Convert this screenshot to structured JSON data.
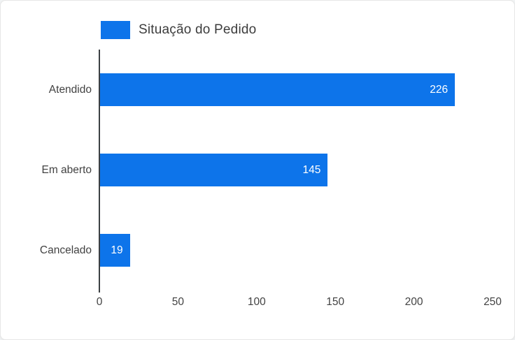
{
  "legend": {
    "label": "Situação do Pedido"
  },
  "chart_data": {
    "type": "bar",
    "orientation": "horizontal",
    "title": "",
    "series_name": "Situação do Pedido",
    "categories": [
      "Atendido",
      "Em aberto",
      "Cancelado"
    ],
    "values": [
      226,
      145,
      19
    ],
    "xlim": [
      0,
      250
    ],
    "xticks": [
      0,
      50,
      100,
      150,
      200,
      250
    ],
    "grid": false,
    "legend_position": "top-left",
    "bar_color": "#0d74ea",
    "value_label_color": "#ffffff",
    "axis_color": "#3c4043",
    "tick_label_color": "#424242",
    "category_label_color": "#424242"
  }
}
